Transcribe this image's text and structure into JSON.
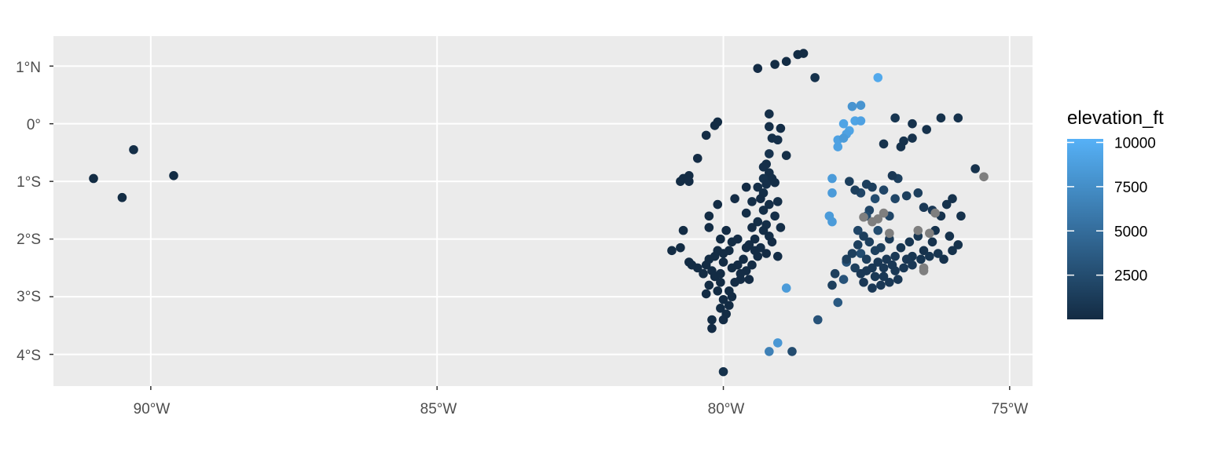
{
  "chart_data": {
    "type": "scatter",
    "title": "",
    "xlabel": "",
    "ylabel": "",
    "xlim": [
      -91.7,
      -74.6
    ],
    "ylim": [
      -4.55,
      1.52
    ],
    "x_ticks": [
      {
        "value": -90,
        "label": "90°W"
      },
      {
        "value": -85,
        "label": "85°W"
      },
      {
        "value": -80,
        "label": "80°W"
      },
      {
        "value": -75,
        "label": "75°W"
      }
    ],
    "y_ticks": [
      {
        "value": 1,
        "label": "1°N"
      },
      {
        "value": 0,
        "label": "0°"
      },
      {
        "value": -1,
        "label": "1°S"
      },
      {
        "value": -2,
        "label": "2°S"
      },
      {
        "value": -3,
        "label": "3°S"
      },
      {
        "value": -4,
        "label": "4°S"
      }
    ],
    "grid": true,
    "panel_background": "#ebebeb",
    "grid_color": "#ffffff",
    "na_color": "#7f7f7f",
    "color_scale": {
      "variable": "elevation_ft",
      "low": 0,
      "high": 10200,
      "low_color": "#132b43",
      "high_color": "#56b1f7",
      "breaks": [
        2500,
        5000,
        7500,
        10000
      ]
    },
    "legend": {
      "title": "elevation_ft",
      "position": "right"
    },
    "points": [
      [
        -91.0,
        -0.95,
        50
      ],
      [
        -90.5,
        -1.28,
        50
      ],
      [
        -90.3,
        -0.45,
        200
      ],
      [
        -89.6,
        -0.9,
        50
      ],
      [
        -79.4,
        0.96,
        100
      ],
      [
        -79.1,
        1.03,
        50
      ],
      [
        -78.9,
        1.08,
        50
      ],
      [
        -78.7,
        1.2,
        50
      ],
      [
        -78.6,
        1.22,
        50
      ],
      [
        -80.1,
        0.03,
        50
      ],
      [
        -80.15,
        -0.03,
        50
      ],
      [
        -80.3,
        -0.2,
        100
      ],
      [
        -80.45,
        -0.6,
        100
      ],
      [
        -79.2,
        0.17,
        300
      ],
      [
        -79.2,
        -0.05,
        300
      ],
      [
        -79.0,
        -0.08,
        200
      ],
      [
        -79.15,
        -0.25,
        300
      ],
      [
        -79.05,
        -0.28,
        400
      ],
      [
        -79.2,
        -0.52,
        600
      ],
      [
        -79.25,
        -0.7,
        300
      ],
      [
        -79.3,
        -0.75,
        400
      ],
      [
        -79.2,
        -0.85,
        300
      ],
      [
        -79.3,
        -0.95,
        500
      ],
      [
        -79.15,
        -0.95,
        300
      ],
      [
        -79.25,
        -1.05,
        400
      ],
      [
        -79.1,
        -1.02,
        200
      ],
      [
        -79.4,
        -1.1,
        300
      ],
      [
        -79.3,
        -1.2,
        200
      ],
      [
        -79.35,
        -1.3,
        100
      ],
      [
        -79.2,
        -1.4,
        300
      ],
      [
        -79.3,
        -1.5,
        200
      ],
      [
        -79.1,
        -1.6,
        300
      ],
      [
        -79.4,
        -1.7,
        200
      ],
      [
        -79.25,
        -1.75,
        300
      ],
      [
        -79.5,
        -1.8,
        100
      ],
      [
        -79.3,
        -1.85,
        200
      ],
      [
        -79.2,
        -1.95,
        200
      ],
      [
        -79.45,
        -2.0,
        100
      ],
      [
        -79.55,
        -2.1,
        100
      ],
      [
        -79.35,
        -2.15,
        150
      ],
      [
        -79.15,
        -2.05,
        100
      ],
      [
        -79.25,
        -2.25,
        100
      ],
      [
        -79.05,
        -2.3,
        150
      ],
      [
        -79.4,
        -2.3,
        100
      ],
      [
        -79.5,
        -2.45,
        100
      ],
      [
        -79.6,
        -2.55,
        100
      ],
      [
        -79.7,
        -2.7,
        100
      ],
      [
        -79.8,
        -2.75,
        100
      ],
      [
        -79.9,
        -2.9,
        50
      ],
      [
        -80.0,
        -3.05,
        50
      ],
      [
        -79.85,
        -3.0,
        50
      ],
      [
        -80.05,
        -3.2,
        50
      ],
      [
        -79.95,
        -3.3,
        50
      ],
      [
        -79.9,
        -3.15,
        50
      ],
      [
        -80.0,
        -3.4,
        100
      ],
      [
        -80.2,
        -3.4,
        50
      ],
      [
        -80.2,
        -3.55,
        100
      ],
      [
        -80.0,
        -4.3,
        500
      ],
      [
        -80.6,
        -0.9,
        50
      ],
      [
        -80.7,
        -0.95,
        50
      ],
      [
        -80.75,
        -1.0,
        50
      ],
      [
        -80.6,
        -1.0,
        100
      ],
      [
        -80.1,
        -1.4,
        50
      ],
      [
        -80.25,
        -1.6,
        50
      ],
      [
        -80.25,
        -1.8,
        50
      ],
      [
        -79.8,
        -1.3,
        100
      ],
      [
        -79.6,
        -1.1,
        100
      ],
      [
        -79.5,
        -1.35,
        200
      ],
      [
        -79.6,
        -1.55,
        200
      ],
      [
        -79.95,
        -1.85,
        100
      ],
      [
        -80.05,
        -2.0,
        50
      ],
      [
        -79.85,
        -2.05,
        50
      ],
      [
        -79.9,
        -2.2,
        50
      ],
      [
        -80.0,
        -2.25,
        50
      ],
      [
        -80.15,
        -2.3,
        50
      ],
      [
        -80.1,
        -2.2,
        50
      ],
      [
        -80.25,
        -2.35,
        50
      ],
      [
        -80.3,
        -2.45,
        50
      ],
      [
        -80.2,
        -2.55,
        50
      ],
      [
        -80.35,
        -2.6,
        50
      ],
      [
        -80.15,
        -2.65,
        50
      ],
      [
        -80.05,
        -2.75,
        50
      ],
      [
        -80.25,
        -2.8,
        50
      ],
      [
        -80.1,
        -2.9,
        50
      ],
      [
        -80.3,
        -2.95,
        50
      ],
      [
        -80.45,
        -2.5,
        50
      ],
      [
        -80.55,
        -2.45,
        50
      ],
      [
        -80.6,
        -2.4,
        50
      ],
      [
        -80.7,
        -1.85,
        50
      ],
      [
        -80.75,
        -2.15,
        50
      ],
      [
        -80.9,
        -2.2,
        50
      ],
      [
        -79.6,
        -2.15,
        100
      ],
      [
        -79.65,
        -2.35,
        100
      ],
      [
        -79.75,
        -2.45,
        100
      ],
      [
        -79.7,
        -2.6,
        100
      ],
      [
        -79.55,
        -2.7,
        100
      ],
      [
        -80.0,
        -2.4,
        50
      ],
      [
        -79.85,
        -2.5,
        50
      ],
      [
        -80.05,
        -2.6,
        50
      ],
      [
        -79.45,
        -2.2,
        100
      ],
      [
        -79.75,
        -2.0,
        100
      ],
      [
        -79.0,
        -1.8,
        200
      ],
      [
        -79.05,
        -1.35,
        300
      ],
      [
        -78.9,
        -0.55,
        200
      ],
      [
        -78.9,
        -2.85,
        8500
      ],
      [
        -79.05,
        -3.8,
        8200
      ],
      [
        -78.4,
        0.8,
        500
      ],
      [
        -78.1,
        -0.95,
        8500
      ],
      [
        -78.1,
        -1.2,
        8500
      ],
      [
        -78.15,
        -1.6,
        8500
      ],
      [
        -78.1,
        -1.7,
        8500
      ],
      [
        -78.0,
        -0.4,
        9000
      ],
      [
        -78.0,
        -0.28,
        9000
      ],
      [
        -77.9,
        0.0,
        9200
      ],
      [
        -77.8,
        -0.12,
        9200
      ],
      [
        -77.7,
        0.05,
        9200
      ],
      [
        -77.6,
        0.05,
        9000
      ],
      [
        -77.75,
        0.3,
        8000
      ],
      [
        -77.6,
        0.32,
        8000
      ],
      [
        -77.85,
        -0.18,
        9000
      ],
      [
        -77.9,
        -0.25,
        8500
      ],
      [
        -77.3,
        0.8,
        9600
      ],
      [
        -79.2,
        -3.95,
        6500
      ],
      [
        -78.8,
        -3.95,
        2500
      ],
      [
        -78.35,
        -3.4,
        3000
      ],
      [
        -78.0,
        -3.1,
        3500
      ],
      [
        -77.9,
        -2.7,
        3000
      ],
      [
        -77.85,
        -2.4,
        3000
      ],
      [
        -77.6,
        -2.25,
        2500
      ],
      [
        -77.45,
        -1.5,
        2000
      ],
      [
        -77.3,
        -1.85,
        2500
      ],
      [
        -77.1,
        -1.6,
        2000
      ],
      [
        -77.0,
        -1.3,
        2000
      ],
      [
        -76.8,
        -1.25,
        1500
      ],
      [
        -76.6,
        -1.2,
        1500
      ],
      [
        -76.5,
        -1.45,
        1000
      ],
      [
        -76.35,
        -1.5,
        1000
      ],
      [
        -76.2,
        -1.6,
        500
      ],
      [
        -76.0,
        -1.3,
        500
      ],
      [
        -76.1,
        -1.4,
        500
      ],
      [
        -75.85,
        -1.6,
        500
      ],
      [
        -76.3,
        -1.85,
        500
      ],
      [
        -76.05,
        -1.95,
        500
      ],
      [
        -75.9,
        -2.1,
        500
      ],
      [
        -76.0,
        -2.2,
        500
      ],
      [
        -76.15,
        -2.35,
        500
      ],
      [
        -76.35,
        -2.05,
        500
      ],
      [
        -76.5,
        -2.2,
        500
      ],
      [
        -76.6,
        -1.95,
        800
      ],
      [
        -76.75,
        -2.05,
        800
      ],
      [
        -76.9,
        -2.15,
        800
      ],
      [
        -76.7,
        -2.3,
        800
      ],
      [
        -77.0,
        -2.3,
        1000
      ],
      [
        -77.15,
        -2.35,
        1000
      ],
      [
        -77.3,
        -2.4,
        1000
      ],
      [
        -77.4,
        -2.5,
        1000
      ],
      [
        -77.5,
        -2.55,
        1000
      ],
      [
        -77.6,
        -2.6,
        1000
      ],
      [
        -77.2,
        -2.65,
        1000
      ],
      [
        -77.0,
        -2.55,
        1000
      ],
      [
        -76.85,
        -2.5,
        1000
      ],
      [
        -76.7,
        -2.45,
        1000
      ],
      [
        -76.55,
        -2.35,
        800
      ],
      [
        -76.4,
        -2.3,
        800
      ],
      [
        -76.25,
        -2.25,
        800
      ],
      [
        -77.1,
        -2.0,
        1200
      ],
      [
        -77.25,
        -2.15,
        1500
      ],
      [
        -77.45,
        -2.05,
        1500
      ],
      [
        -77.55,
        -1.95,
        1500
      ],
      [
        -77.65,
        -2.1,
        1500
      ],
      [
        -77.75,
        -2.25,
        1500
      ],
      [
        -77.85,
        -2.35,
        1500
      ],
      [
        -77.7,
        -2.5,
        1500
      ],
      [
        -77.55,
        -2.75,
        1000
      ],
      [
        -77.4,
        -2.85,
        1000
      ],
      [
        -77.25,
        -2.8,
        1000
      ],
      [
        -77.1,
        -2.75,
        1000
      ],
      [
        -76.95,
        -2.7,
        1000
      ],
      [
        -77.35,
        -2.65,
        1000
      ],
      [
        -77.5,
        -2.35,
        1500
      ],
      [
        -77.35,
        -2.2,
        1500
      ],
      [
        -77.2,
        -2.5,
        1000
      ],
      [
        -77.05,
        -2.45,
        1000
      ],
      [
        -76.8,
        -2.35,
        1000
      ],
      [
        -77.65,
        -1.85,
        2000
      ],
      [
        -77.5,
        -1.6,
        2500
      ],
      [
        -77.35,
        -1.3,
        2500
      ],
      [
        -77.2,
        -1.15,
        2000
      ],
      [
        -77.6,
        -1.2,
        2000
      ],
      [
        -77.5,
        -1.05,
        1500
      ],
      [
        -77.4,
        -1.1,
        1500
      ],
      [
        -76.95,
        -0.95,
        1500
      ],
      [
        -77.7,
        -1.15,
        1500
      ],
      [
        -77.8,
        -1.0,
        1500
      ],
      [
        -78.1,
        -2.8,
        1500
      ],
      [
        -78.05,
        -2.6,
        1500
      ],
      [
        -77.0,
        0.1,
        800
      ],
      [
        -76.7,
        0.0,
        500
      ],
      [
        -76.45,
        -0.1,
        500
      ],
      [
        -76.2,
        0.1,
        500
      ],
      [
        -76.85,
        -0.3,
        500
      ],
      [
        -76.9,
        -0.4,
        500
      ],
      [
        -76.7,
        -0.25,
        500
      ],
      [
        -77.2,
        -0.35,
        500
      ],
      [
        -75.6,
        -0.78,
        500
      ],
      [
        -75.9,
        0.1,
        500
      ],
      [
        -77.05,
        -0.9,
        1000
      ],
      [
        -75.45,
        -0.92,
        null
      ],
      [
        -76.3,
        -1.55,
        null
      ],
      [
        -77.2,
        -1.55,
        null
      ],
      [
        -77.3,
        -1.65,
        null
      ],
      [
        -77.4,
        -1.7,
        null
      ],
      [
        -77.1,
        -1.9,
        null
      ],
      [
        -76.6,
        -1.85,
        null
      ],
      [
        -76.4,
        -1.9,
        null
      ],
      [
        -76.5,
        -2.5,
        null
      ],
      [
        -76.5,
        -2.55,
        null
      ],
      [
        -77.55,
        -1.62,
        null
      ]
    ]
  }
}
